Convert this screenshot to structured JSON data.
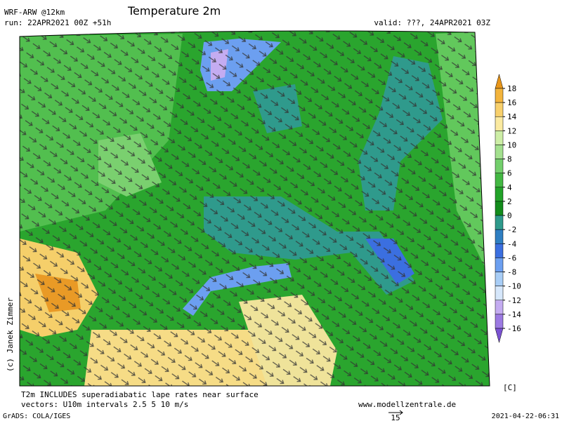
{
  "header": {
    "model": "WRF-ARW @12km",
    "run": "run: 22APR2021 00Z +51h",
    "title": "Temperature 2m",
    "valid": "valid: ???, 24APR2021 03Z"
  },
  "colorbar": {
    "levels": [
      18,
      16,
      14,
      12,
      10,
      8,
      6,
      4,
      2,
      0,
      -2,
      -4,
      -6,
      -8,
      -10,
      -12,
      -14,
      -16
    ],
    "colors": [
      "#e8961a",
      "#f3b43c",
      "#f8d06c",
      "#fbeaa0",
      "#cdeea6",
      "#a3e08e",
      "#73cf6c",
      "#43b843",
      "#22a329",
      "#138c1c",
      "#2f9a8c",
      "#2f7fc2",
      "#3b6fe0",
      "#6c9ff0",
      "#a8cdf6",
      "#d6e7fb",
      "#c4acf1",
      "#9c7ae2",
      "#7a52d2"
    ],
    "unit": "[C]"
  },
  "map": {
    "copyright": "(c) Janek Zimmer"
  },
  "footer": {
    "note1": "T2m INCLUDES superadiabatic lape rates near surface",
    "note2": "vectors: U10m intervals 2.5 5 10 m/s",
    "website": "www.modellzentrale.de",
    "software": "GrADS: COLA/IGES",
    "vector_scale": "15",
    "timestamp": "2021-04-22-06:31"
  }
}
